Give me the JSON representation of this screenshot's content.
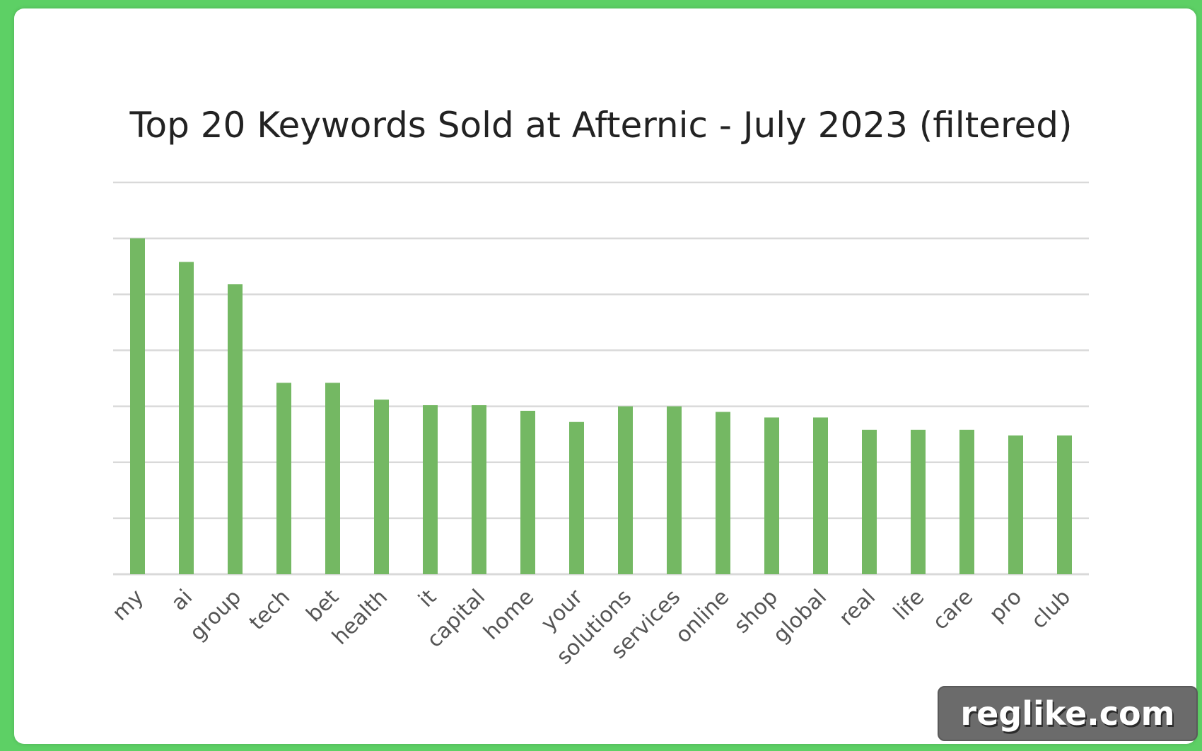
{
  "chart_data": {
    "type": "bar",
    "title": "Top 20 Keywords Sold at Afternic - July 2023 (filtered)",
    "xlabel": "",
    "ylabel": "",
    "categories": [
      "my",
      "ai",
      "group",
      "tech",
      "bet",
      "health",
      "it",
      "capital",
      "home",
      "your",
      "solutions",
      "services",
      "online",
      "shop",
      "global",
      "real",
      "life",
      "care",
      "pro",
      "club"
    ],
    "values": [
      60,
      55.8,
      51.8,
      34.2,
      34.2,
      31.2,
      30.2,
      30.2,
      29.2,
      27.2,
      30,
      30,
      29,
      28,
      28,
      25.8,
      25.8,
      25.8,
      24.8,
      24.8
    ],
    "ylim": [
      0,
      70
    ],
    "gridlines": 7,
    "y_tick_labels_shown": false,
    "bar_color": "#74b863",
    "grid_color": "#d9d9d9"
  },
  "watermark": {
    "text": "reglike.com"
  },
  "colors": {
    "frame": "#5dd065",
    "card": "#ffffff"
  }
}
